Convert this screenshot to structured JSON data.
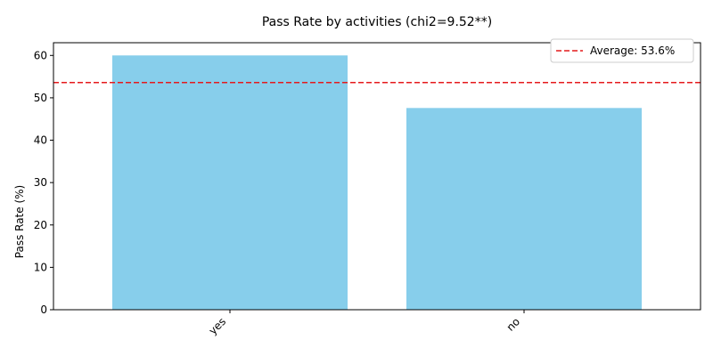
{
  "chart_data": {
    "type": "bar",
    "title": "Pass Rate by activities (chi2=9.52**)",
    "xlabel": "",
    "ylabel": "Pass Rate (%)",
    "categories": [
      "yes",
      "no"
    ],
    "values": [
      60.0,
      47.6
    ],
    "ylim": [
      0,
      63
    ],
    "yticks": [
      0,
      10,
      20,
      30,
      40,
      50,
      60
    ],
    "bar_color": "#87ceeb",
    "reference_line": {
      "value": 53.6,
      "label": "Average: 53.6%",
      "color": "#e41a1c",
      "style": "dashed"
    },
    "legend": {
      "placement": "top-right",
      "entries": [
        "Average: 53.6%"
      ]
    },
    "grid": false,
    "x_tick_rotation": 45
  }
}
